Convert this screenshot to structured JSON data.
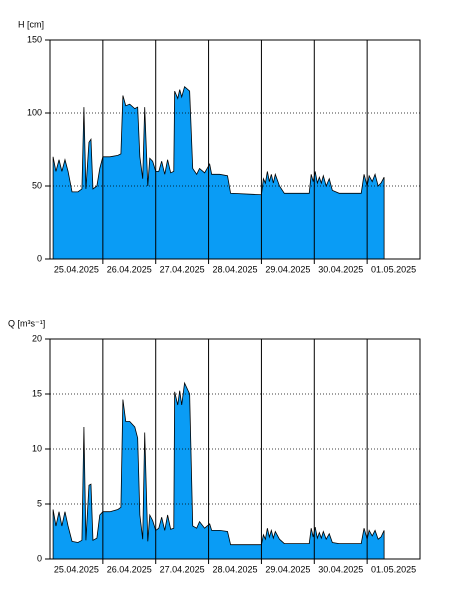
{
  "chart_data": [
    {
      "type": "area",
      "ylabel": "H [cm]",
      "x": [
        1.4,
        2.7,
        4.1,
        5.4,
        6.8,
        8.2,
        10,
        12.7,
        14.5,
        15.4,
        16.3,
        17.7,
        18.6,
        19.5,
        21.3,
        22.6,
        24,
        27.2,
        30.8,
        32.2,
        33.1,
        34.4,
        36.2,
        38.5,
        39.8,
        40.8,
        42.1,
        43,
        44.4,
        45.3,
        46.6,
        48,
        49.4,
        50.7,
        52.1,
        53.4,
        54.8,
        56.2,
        56.6,
        58,
        58.9,
        59.8,
        61.1,
        63.4,
        64.8,
        66.6,
        67.9,
        70.2,
        72.5,
        73.4,
        77,
        80.6,
        82,
        96,
        96.9,
        97.8,
        98.7,
        99.6,
        100.5,
        101.4,
        102.3,
        104.2,
        106.4,
        117.7,
        118.6,
        119.5,
        120.4,
        121.4,
        122.3,
        123.2,
        124.1,
        125.4,
        126.8,
        128.2,
        131.3,
        141.3,
        142.6,
        144,
        144.9,
        146.3,
        147.6,
        149,
        150.3,
        151.7
      ],
      "series": [
        {
          "color": "#0a9cf5",
          "values": [
            70,
            60,
            68,
            60,
            68,
            60,
            46,
            46,
            48,
            104,
            48,
            80,
            82,
            48,
            50,
            62,
            70,
            70,
            71,
            72,
            112,
            105,
            106,
            103,
            104,
            70,
            55,
            104,
            50,
            69,
            67,
            60,
            60,
            67,
            58,
            68,
            59,
            60,
            115,
            110,
            116,
            111,
            118,
            115,
            62,
            58,
            62,
            59,
            65,
            58,
            58,
            57,
            45,
            44,
            55,
            52,
            60,
            53,
            58,
            52,
            58,
            50,
            45,
            45,
            58,
            53,
            60,
            52,
            56,
            52,
            57,
            50,
            55,
            47,
            45,
            45,
            58,
            50,
            57,
            53,
            58,
            50,
            52,
            56
          ]
        }
      ],
      "xlim": [
        0,
        168
      ],
      "xticks": [
        {
          "value": 12,
          "label": "25.04.2025"
        },
        {
          "value": 36,
          "label": "26.04.2025"
        },
        {
          "value": 60,
          "label": "27.04.2025"
        },
        {
          "value": 84,
          "label": "28.04.2025"
        },
        {
          "value": 108,
          "label": "29.04.2025"
        },
        {
          "value": 132,
          "label": "30.04.2025"
        },
        {
          "value": 156,
          "label": "01.05.2025"
        }
      ],
      "xgrid": [
        24,
        48,
        72,
        96,
        120,
        144
      ],
      "ylim": [
        0,
        150
      ],
      "yticks": [
        0,
        50,
        100,
        150
      ],
      "grid": true
    },
    {
      "type": "area",
      "ylabel": "Q [m³s⁻¹]",
      "x": [
        1.4,
        2.7,
        4.1,
        5.4,
        6.8,
        8.2,
        10,
        12.7,
        14.5,
        15.4,
        16.3,
        17.7,
        18.6,
        19.5,
        21.3,
        22.6,
        24,
        27.2,
        30.8,
        32.2,
        33.1,
        34.4,
        36.2,
        38.5,
        39.8,
        40.8,
        42.1,
        43,
        44.4,
        45.3,
        46.6,
        48,
        49.4,
        50.7,
        52.1,
        53.4,
        54.8,
        56.2,
        56.6,
        58,
        58.9,
        59.8,
        61.1,
        63.4,
        64.8,
        66.6,
        67.9,
        70.2,
        72.5,
        73.4,
        77,
        80.6,
        82,
        96,
        96.9,
        97.8,
        98.7,
        99.6,
        100.5,
        101.4,
        102.3,
        104.2,
        106.4,
        117.7,
        118.6,
        119.5,
        120.4,
        121.4,
        122.3,
        123.2,
        124.1,
        125.4,
        126.8,
        128.2,
        131.3,
        141.3,
        142.6,
        144,
        144.9,
        146.3,
        147.6,
        149,
        150.3,
        151.7
      ],
      "series": [
        {
          "color": "#0a9cf5",
          "values": [
            4.5,
            3,
            4.3,
            3,
            4.3,
            3,
            1.6,
            1.5,
            1.7,
            12,
            1.7,
            6.7,
            6.8,
            1.7,
            1.9,
            4,
            4.3,
            4.3,
            4.5,
            4.7,
            14.5,
            12.5,
            12.5,
            12,
            11,
            4,
            1.8,
            11.5,
            1.6,
            4,
            3.5,
            2.6,
            2.8,
            3.8,
            2.6,
            4,
            2.7,
            2.8,
            15.2,
            14,
            15.3,
            14,
            16,
            15,
            3,
            2.8,
            3.4,
            2.8,
            3.2,
            2.6,
            2.6,
            2.5,
            1.3,
            1.3,
            2.2,
            1.8,
            2.8,
            2,
            2.6,
            1.9,
            2.5,
            1.8,
            1.4,
            1.4,
            2.8,
            2,
            2.9,
            1.9,
            2.4,
            1.9,
            2.5,
            1.8,
            2.3,
            1.5,
            1.4,
            1.4,
            2.8,
            1.8,
            2.6,
            2.1,
            2.6,
            1.8,
            2,
            2.6
          ]
        }
      ],
      "xlim": [
        0,
        168
      ],
      "xticks": [
        {
          "value": 12,
          "label": "25.04.2025"
        },
        {
          "value": 36,
          "label": "26.04.2025"
        },
        {
          "value": 60,
          "label": "27.04.2025"
        },
        {
          "value": 84,
          "label": "28.04.2025"
        },
        {
          "value": 108,
          "label": "29.04.2025"
        },
        {
          "value": 132,
          "label": "30.04.2025"
        },
        {
          "value": 156,
          "label": "01.05.2025"
        }
      ],
      "xgrid": [
        24,
        48,
        72,
        96,
        120,
        144
      ],
      "ylim": [
        0,
        20
      ],
      "yticks": [
        0,
        5,
        10,
        15,
        20
      ],
      "grid": true
    }
  ]
}
